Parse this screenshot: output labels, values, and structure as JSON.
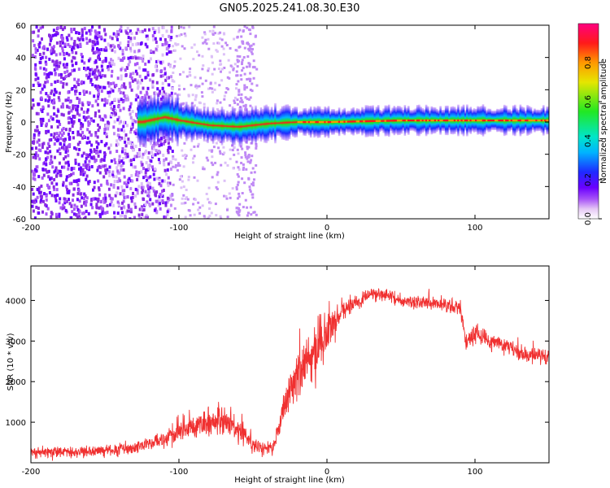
{
  "title": "GN05.2025.241.08.30.E30",
  "chart_data": [
    {
      "type": "heatmap",
      "xlabel": "Height of straight line (km)",
      "ylabel": "Frequency (Hz)",
      "xlim": [
        -200,
        150
      ],
      "ylim": [
        -60,
        60
      ],
      "xticks": [
        -200,
        -100,
        0,
        100
      ],
      "yticks": [
        -60,
        -40,
        -20,
        0,
        20,
        40,
        60
      ],
      "colorbar": {
        "label": "Normalized spectral amplitude",
        "ticks": [
          "0.0",
          "0.2",
          "0.4",
          "0.6",
          "0.8"
        ],
        "colors": [
          "#ffffff",
          "#e6c8f5",
          "#a855f7",
          "#6a00ff",
          "#1e2bff",
          "#00b4ff",
          "#00e6c8",
          "#22e822",
          "#e6e600",
          "#ff9900",
          "#ff1a1a",
          "#ff0080"
        ]
      },
      "ridge": [
        {
          "x": -125,
          "y": 0
        },
        {
          "x": -110,
          "y": 3
        },
        {
          "x": -100,
          "y": 1
        },
        {
          "x": -80,
          "y": -2
        },
        {
          "x": -60,
          "y": -3
        },
        {
          "x": -40,
          "y": -1
        },
        {
          "x": -20,
          "y": 0
        },
        {
          "x": 0,
          "y": 0
        },
        {
          "x": 50,
          "y": 1
        },
        {
          "x": 100,
          "y": 1
        },
        {
          "x": 150,
          "y": 1
        }
      ],
      "noise_band_x": [
        -200,
        -105
      ],
      "grid": false
    },
    {
      "type": "line",
      "xlabel": "Height of straight line (km)",
      "ylabel": "SNR (10 * v/v)",
      "xlim": [
        -200,
        150
      ],
      "ylim": [
        0,
        4850
      ],
      "xticks": [
        -200,
        -100,
        0,
        100
      ],
      "yticks": [
        1000,
        2000,
        3000,
        4000
      ],
      "color": "#f03030",
      "series": [
        {
          "x": [
            -200,
            -180,
            -160,
            -140,
            -130,
            -120,
            -110,
            -100,
            -90,
            -80,
            -70,
            -60,
            -50,
            -42,
            -37,
            -30,
            -25,
            -20,
            -15,
            -10,
            -5,
            0,
            10,
            20,
            30,
            40,
            50,
            60,
            70,
            80,
            90,
            94,
            100,
            110,
            120,
            130,
            140,
            150
          ],
          "y": [
            250,
            270,
            280,
            330,
            380,
            500,
            560,
            780,
            880,
            1050,
            1040,
            820,
            500,
            350,
            300,
            1200,
            1800,
            2100,
            2350,
            2600,
            2900,
            3200,
            3700,
            3950,
            4150,
            4150,
            4000,
            3950,
            3950,
            3900,
            3800,
            3000,
            3200,
            3000,
            2900,
            2700,
            2650,
            2600
          ],
          "noise": [
            160,
            170,
            170,
            180,
            180,
            200,
            260,
            350,
            400,
            450,
            450,
            400,
            320,
            220,
            200,
            450,
            600,
            700,
            750,
            800,
            800,
            850,
            350,
            250,
            220,
            180,
            180,
            180,
            200,
            220,
            250,
            300,
            280,
            260,
            260,
            260,
            250,
            240
          ]
        }
      ],
      "grid": false
    }
  ]
}
